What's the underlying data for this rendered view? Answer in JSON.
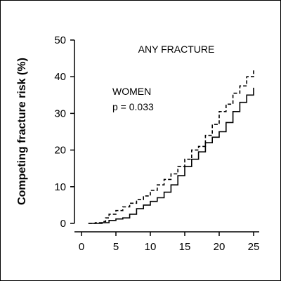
{
  "chart_data": {
    "type": "line",
    "title": "",
    "xlabel": "",
    "ylabel": "Competing fracture risk (%)",
    "xlim": [
      0,
      25
    ],
    "ylim": [
      0,
      50
    ],
    "x_ticks": [
      0,
      5,
      10,
      15,
      20,
      25
    ],
    "y_ticks": [
      0,
      10,
      20,
      30,
      40,
      50
    ],
    "grid": false,
    "annotations": {
      "panel_title": "ANY FRACTURE",
      "group": "WOMEN",
      "pvalue": "p = 0.033"
    },
    "series": [
      {
        "style": "dashed",
        "x": [
          1,
          2,
          3,
          3.5,
          4,
          5,
          6,
          7,
          8,
          9,
          10,
          11,
          12,
          13,
          14,
          15,
          16,
          17,
          18,
          19,
          20,
          21,
          22,
          23,
          24,
          25
        ],
        "values": [
          0,
          0.2,
          0.5,
          1.5,
          2.5,
          3.5,
          4.5,
          5.5,
          6.5,
          7.5,
          9.0,
          10.5,
          12.0,
          13.5,
          15.5,
          17.5,
          20.0,
          21.0,
          24.0,
          27.0,
          30.5,
          32.5,
          35.5,
          37.5,
          40.0,
          42.0
        ]
      },
      {
        "style": "solid",
        "x": [
          1,
          2,
          3,
          4,
          5,
          6,
          7,
          8,
          9,
          10,
          11,
          12,
          13,
          14,
          15,
          16,
          17,
          18,
          19,
          20,
          21,
          22,
          23,
          24,
          25
        ],
        "values": [
          0,
          0,
          0.2,
          0.8,
          1.2,
          1.5,
          2.5,
          4.0,
          5.0,
          6.0,
          7.0,
          8.5,
          10.5,
          13.0,
          15.5,
          17.5,
          19.5,
          22.0,
          23.5,
          25.0,
          27.5,
          30.5,
          33.0,
          35.0,
          37.0
        ]
      }
    ]
  }
}
